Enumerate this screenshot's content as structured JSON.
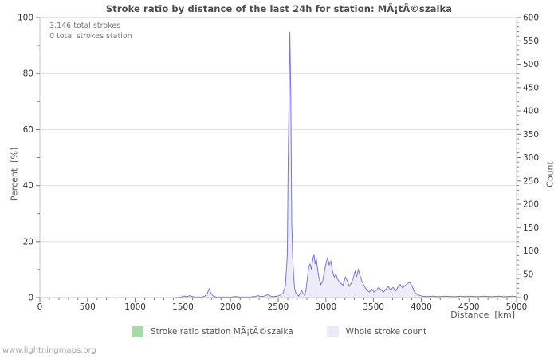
{
  "footer": {
    "site": "www.lightningmaps.org"
  },
  "chart_data": {
    "type": "area",
    "title": "Stroke ratio by distance of the last 24h for station: MÃ¡tÃ©szalka",
    "xlabel": "Distance  [km]",
    "ylabel_left": "Percent  [%]",
    "ylabel_right": "Count",
    "annotations": [
      "3.146 total strokes",
      "0 total strokes station"
    ],
    "x_axis": {
      "min": 0,
      "max": 5000,
      "major_step": 500,
      "minor_step": 100
    },
    "y_left": {
      "min": 0,
      "max": 100,
      "major_step": 20,
      "minor_step": 10
    },
    "y_right": {
      "min": 0,
      "max": 600,
      "major_step": 50,
      "minor_step": 10
    },
    "grid": "horizontal-major",
    "legend_position": "bottom-center",
    "colors": {
      "grid": "#dedede",
      "frame": "#c6c6c6",
      "tick": "#777777",
      "tick_label": "#333333"
    },
    "series": [
      {
        "name": "Stroke ratio station MÃ¡tÃ©szalka",
        "axis": "left",
        "color": "#a8daa8",
        "color_line": "#a8daa8",
        "points": [
          [
            0,
            0
          ],
          [
            5000,
            0
          ]
        ]
      },
      {
        "name": "Whole stroke count",
        "axis": "right",
        "color": "#e9e9f7",
        "color_line": "#7878d8",
        "color_fill": "#ededf9",
        "points": [
          [
            0,
            0
          ],
          [
            200,
            0
          ],
          [
            400,
            0
          ],
          [
            600,
            0
          ],
          [
            800,
            0
          ],
          [
            1000,
            0
          ],
          [
            1200,
            0
          ],
          [
            1400,
            0
          ],
          [
            1480,
            1
          ],
          [
            1510,
            3
          ],
          [
            1540,
            2
          ],
          [
            1570,
            4
          ],
          [
            1600,
            2
          ],
          [
            1630,
            1
          ],
          [
            1660,
            1
          ],
          [
            1700,
            1
          ],
          [
            1730,
            3
          ],
          [
            1760,
            10
          ],
          [
            1775,
            19
          ],
          [
            1795,
            9
          ],
          [
            1820,
            3
          ],
          [
            1850,
            1
          ],
          [
            1900,
            1
          ],
          [
            1950,
            1
          ],
          [
            2000,
            1
          ],
          [
            2050,
            2
          ],
          [
            2100,
            1
          ],
          [
            2150,
            1
          ],
          [
            2200,
            1
          ],
          [
            2250,
            2
          ],
          [
            2290,
            4
          ],
          [
            2320,
            2
          ],
          [
            2350,
            3
          ],
          [
            2390,
            6
          ],
          [
            2420,
            3
          ],
          [
            2450,
            2
          ],
          [
            2490,
            3
          ],
          [
            2520,
            5
          ],
          [
            2550,
            9
          ],
          [
            2575,
            25
          ],
          [
            2595,
            90
          ],
          [
            2605,
            300
          ],
          [
            2615,
            450
          ],
          [
            2622,
            570
          ],
          [
            2632,
            430
          ],
          [
            2642,
            160
          ],
          [
            2652,
            85
          ],
          [
            2662,
            45
          ],
          [
            2672,
            20
          ],
          [
            2685,
            10
          ],
          [
            2700,
            6
          ],
          [
            2715,
            3
          ],
          [
            2730,
            9
          ],
          [
            2745,
            16
          ],
          [
            2760,
            9
          ],
          [
            2775,
            5
          ],
          [
            2790,
            14
          ],
          [
            2805,
            40
          ],
          [
            2820,
            65
          ],
          [
            2835,
            72
          ],
          [
            2848,
            60
          ],
          [
            2862,
            80
          ],
          [
            2875,
            92
          ],
          [
            2888,
            72
          ],
          [
            2900,
            84
          ],
          [
            2915,
            58
          ],
          [
            2930,
            40
          ],
          [
            2948,
            28
          ],
          [
            2965,
            34
          ],
          [
            2982,
            52
          ],
          [
            3000,
            72
          ],
          [
            3018,
            86
          ],
          [
            3035,
            70
          ],
          [
            3052,
            78
          ],
          [
            3070,
            56
          ],
          [
            3088,
            44
          ],
          [
            3105,
            50
          ],
          [
            3122,
            40
          ],
          [
            3140,
            34
          ],
          [
            3160,
            30
          ],
          [
            3180,
            26
          ],
          [
            3205,
            44
          ],
          [
            3225,
            36
          ],
          [
            3245,
            24
          ],
          [
            3265,
            30
          ],
          [
            3285,
            40
          ],
          [
            3305,
            56
          ],
          [
            3322,
            44
          ],
          [
            3340,
            60
          ],
          [
            3360,
            46
          ],
          [
            3380,
            34
          ],
          [
            3405,
            24
          ],
          [
            3430,
            16
          ],
          [
            3455,
            12
          ],
          [
            3480,
            18
          ],
          [
            3505,
            12
          ],
          [
            3530,
            16
          ],
          [
            3555,
            22
          ],
          [
            3580,
            16
          ],
          [
            3605,
            12
          ],
          [
            3630,
            18
          ],
          [
            3655,
            24
          ],
          [
            3680,
            16
          ],
          [
            3705,
            22
          ],
          [
            3730,
            14
          ],
          [
            3755,
            22
          ],
          [
            3780,
            28
          ],
          [
            3805,
            20
          ],
          [
            3830,
            26
          ],
          [
            3855,
            30
          ],
          [
            3880,
            33
          ],
          [
            3905,
            24
          ],
          [
            3930,
            12
          ],
          [
            3955,
            7
          ],
          [
            3980,
            5
          ],
          [
            4010,
            3
          ],
          [
            4060,
            2
          ],
          [
            4110,
            3
          ],
          [
            4160,
            2
          ],
          [
            4210,
            2
          ],
          [
            4260,
            3
          ],
          [
            4310,
            2
          ],
          [
            4360,
            2
          ],
          [
            4410,
            3
          ],
          [
            4460,
            2
          ],
          [
            4510,
            3
          ],
          [
            4560,
            2
          ],
          [
            4610,
            2
          ],
          [
            4660,
            3
          ],
          [
            4710,
            2
          ],
          [
            4760,
            2
          ],
          [
            4810,
            3
          ],
          [
            4860,
            2
          ],
          [
            4910,
            2
          ],
          [
            4960,
            3
          ],
          [
            5000,
            2
          ]
        ]
      }
    ]
  }
}
